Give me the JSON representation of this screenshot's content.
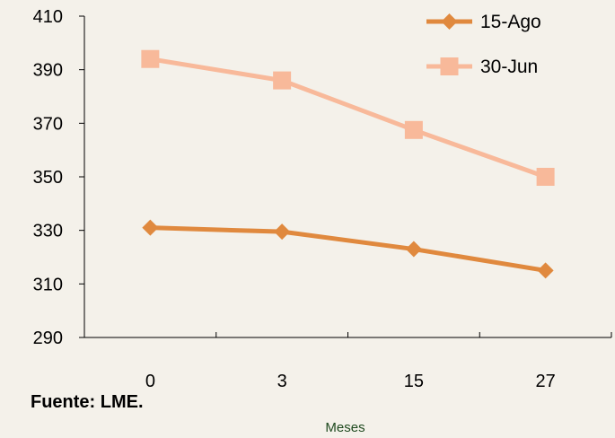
{
  "chart_data": {
    "type": "line",
    "categories": [
      "0",
      "3",
      "15",
      "27"
    ],
    "series": [
      {
        "name": "15-Ago",
        "values": [
          331,
          329.5,
          323,
          315
        ],
        "color": "#e0893e",
        "marker": "diamond"
      },
      {
        "name": "30-Jun",
        "values": [
          394,
          386,
          367.5,
          350
        ],
        "color": "#f8b99a",
        "marker": "square"
      }
    ],
    "xlabel": "Meses",
    "ylabel": "",
    "ylim": [
      290,
      410
    ],
    "yticks": [
      290,
      310,
      330,
      350,
      370,
      390,
      410
    ],
    "grid": false,
    "legend_position": "top-right"
  },
  "source": "Fuente: LME."
}
